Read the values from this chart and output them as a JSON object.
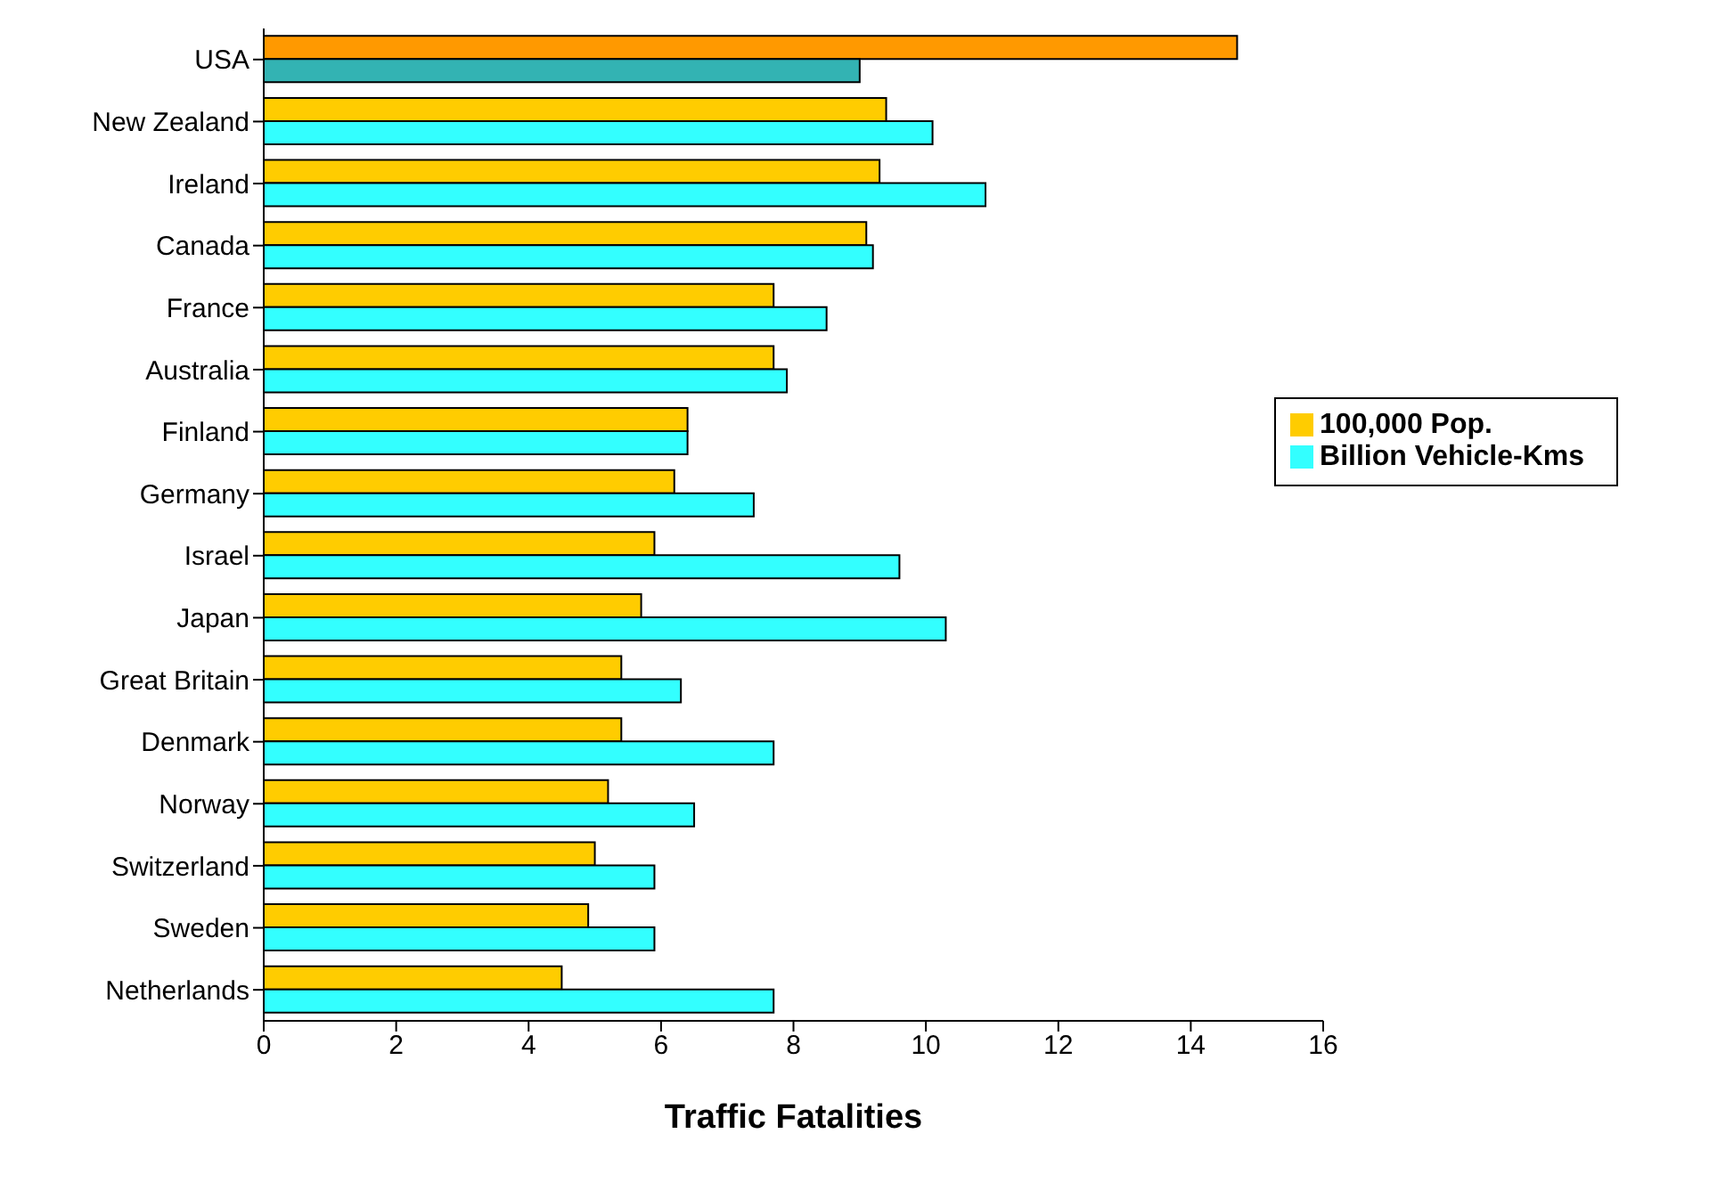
{
  "chart_data": {
    "type": "bar",
    "orientation": "horizontal",
    "xlabel": "Traffic Fatalities",
    "categories": [
      "USA",
      "New Zealand",
      "Ireland",
      "Canada",
      "France",
      "Australia",
      "Finland",
      "Germany",
      "Israel",
      "Japan",
      "Great Britain",
      "Denmark",
      "Norway",
      "Switzerland",
      "Sweden",
      "Netherlands"
    ],
    "series": [
      {
        "name": "100,000 Pop.",
        "color": "#ffcc00",
        "colors": [
          "#ff9900",
          "#ffcc00",
          "#ffcc00",
          "#ffcc00",
          "#ffcc00",
          "#ffcc00",
          "#ffcc00",
          "#ffcc00",
          "#ffcc00",
          "#ffcc00",
          "#ffcc00",
          "#ffcc00",
          "#ffcc00",
          "#ffcc00",
          "#ffcc00",
          "#ffcc00"
        ],
        "values": [
          14.7,
          9.4,
          9.3,
          9.1,
          7.7,
          7.7,
          6.4,
          6.2,
          5.9,
          5.7,
          5.4,
          5.4,
          5.2,
          5.0,
          4.9,
          4.5
        ]
      },
      {
        "name": "Billion Vehicle-Kms",
        "color": "#33ffff",
        "colors": [
          "#33b3b3",
          "#33ffff",
          "#33ffff",
          "#33ffff",
          "#33ffff",
          "#33ffff",
          "#33ffff",
          "#33ffff",
          "#33ffff",
          "#33ffff",
          "#33ffff",
          "#33ffff",
          "#33ffff",
          "#33ffff",
          "#33ffff",
          "#33ffff"
        ],
        "values": [
          9.0,
          10.1,
          10.9,
          9.2,
          8.5,
          7.9,
          6.4,
          7.4,
          9.6,
          10.3,
          6.3,
          7.7,
          6.5,
          5.9,
          5.9,
          7.7
        ]
      }
    ],
    "xlim": [
      0,
      16
    ],
    "xticks": [
      0,
      2,
      4,
      6,
      8,
      10,
      12,
      14,
      16
    ],
    "grid": false,
    "legend": "right"
  }
}
